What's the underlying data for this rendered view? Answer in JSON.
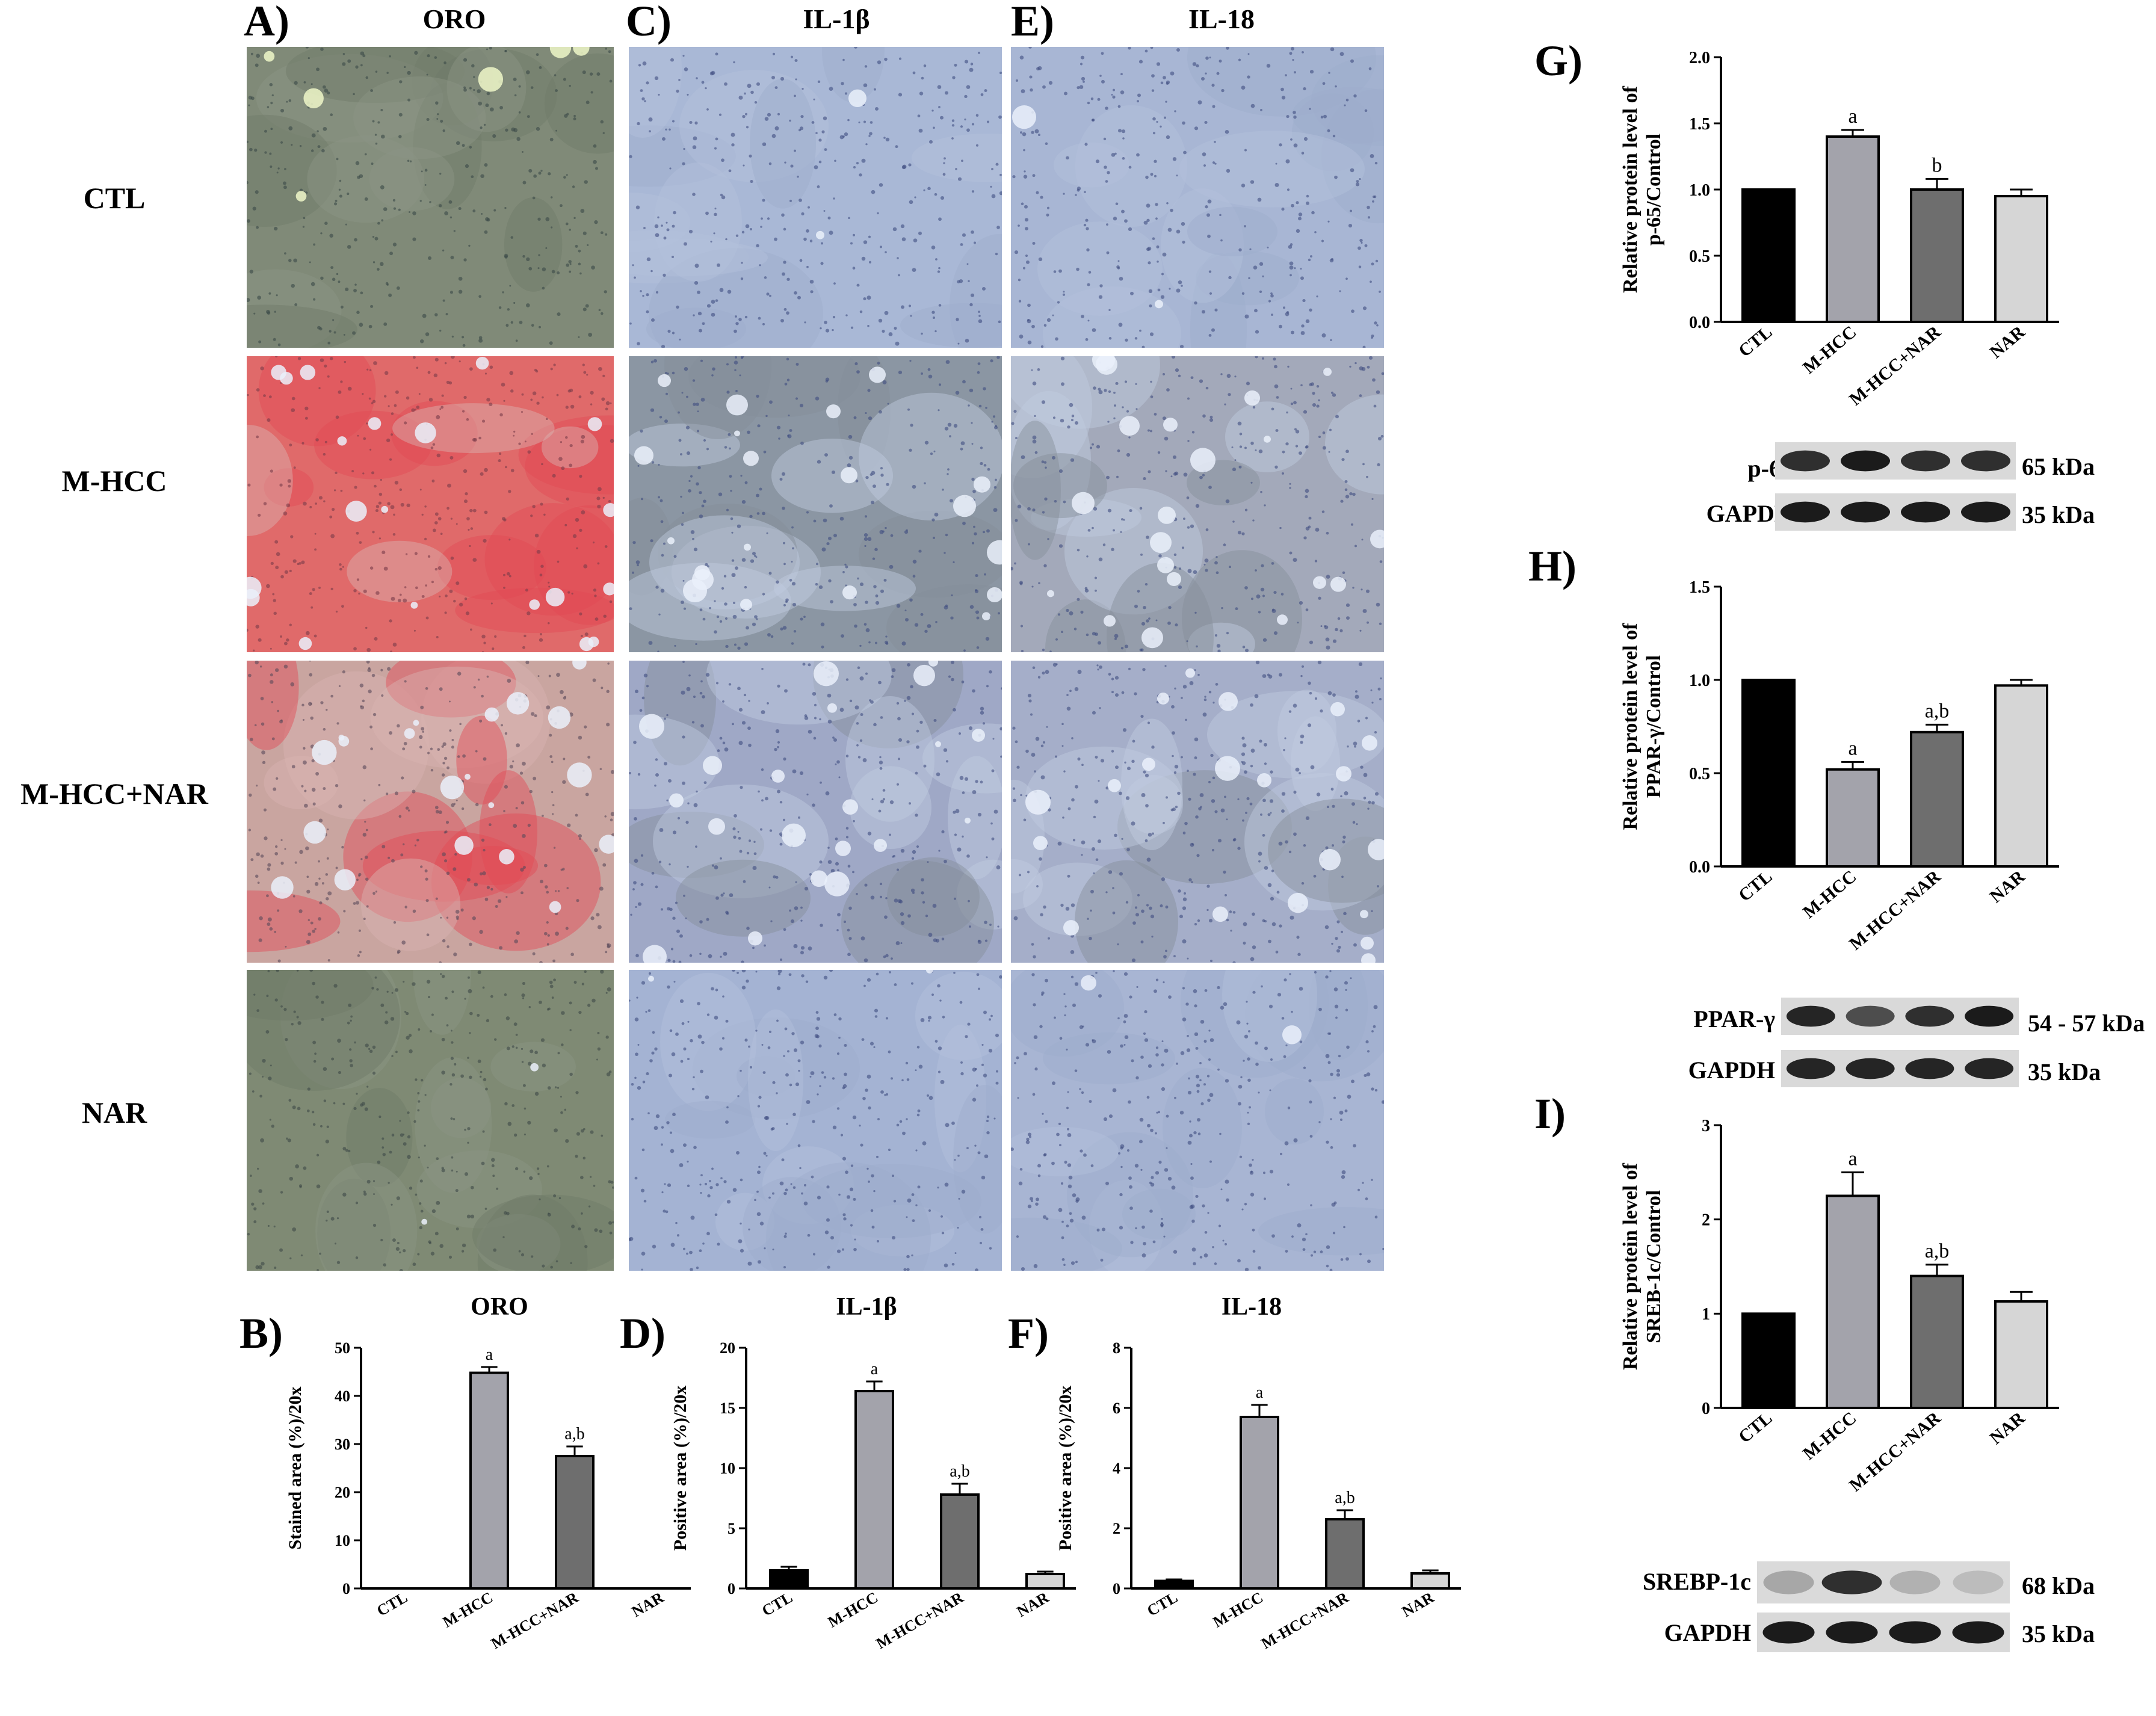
{
  "histology": {
    "columns": [
      {
        "panel": "A)",
        "stain": "ORO"
      },
      {
        "panel": "C)",
        "stain": "IL-1β"
      },
      {
        "panel": "E)",
        "stain": "IL-18"
      }
    ],
    "rows": [
      "CTL",
      "M-HCC",
      "M-HCC+NAR",
      "NAR"
    ]
  },
  "blots": {
    "G": {
      "bands": [
        {
          "label": "p-65",
          "kda": "65 kDa"
        },
        {
          "label": "GAPDH",
          "kda": "35 kDa"
        }
      ]
    },
    "H": {
      "bands": [
        {
          "label": "PPAR-γ",
          "kda": "54 - 57 kDa"
        },
        {
          "label": "GAPDH",
          "kda": "35 kDa"
        }
      ]
    },
    "I": {
      "bands": [
        {
          "label": "SREBP-1c",
          "kda": "68 kDa"
        },
        {
          "label": "GAPDH",
          "kda": "35 kDa"
        }
      ]
    }
  },
  "chart_data": [
    {
      "panel": "B)",
      "type": "bar",
      "title": "ORO",
      "categories": [
        "CTL",
        "M-HCC",
        "M-HCC+NAR",
        "NAR"
      ],
      "values": [
        0,
        44.8,
        27.5,
        0
      ],
      "errors": [
        0,
        1.2,
        2.0,
        0
      ],
      "annotations": [
        "",
        "a",
        "a,b",
        ""
      ],
      "ylabel": "Stained area (%)/20x",
      "ylim": [
        0,
        50
      ],
      "yticks": [
        "0",
        "10",
        "20",
        "30",
        "40",
        "50"
      ],
      "colors": [
        "#000000",
        "#a3a3ab",
        "#6e6e6e",
        "#d6d6d6"
      ]
    },
    {
      "panel": "D)",
      "type": "bar",
      "title": "IL-1β",
      "categories": [
        "CTL",
        "M-HCC",
        "M-HCC+NAR",
        "NAR"
      ],
      "values": [
        1.5,
        16.4,
        7.8,
        1.2
      ],
      "errors": [
        0.3,
        0.8,
        0.9,
        0.2
      ],
      "annotations": [
        "",
        "a",
        "a,b",
        ""
      ],
      "ylabel": "Positive area (%)/20x",
      "ylim": [
        0,
        20
      ],
      "yticks": [
        "0",
        "5",
        "10",
        "15",
        "20"
      ],
      "colors": [
        "#000000",
        "#a3a3ab",
        "#6e6e6e",
        "#d6d6d6"
      ]
    },
    {
      "panel": "F)",
      "type": "bar",
      "title": "IL-18",
      "categories": [
        "CTL",
        "M-HCC",
        "M-HCC+NAR",
        "NAR"
      ],
      "values": [
        0.25,
        5.7,
        2.3,
        0.5
      ],
      "errors": [
        0.05,
        0.4,
        0.3,
        0.1
      ],
      "annotations": [
        "",
        "a",
        "a,b",
        ""
      ],
      "ylabel": "Positive area (%)/20x",
      "ylim": [
        0,
        8
      ],
      "yticks": [
        "0",
        "2",
        "4",
        "6",
        "8"
      ],
      "colors": [
        "#000000",
        "#a3a3ab",
        "#6e6e6e",
        "#d6d6d6"
      ]
    },
    {
      "panel": "G)",
      "type": "bar",
      "title": "",
      "categories": [
        "CTL",
        "M-HCC",
        "M-HCC+NAR",
        "NAR"
      ],
      "values": [
        1.0,
        1.4,
        1.0,
        0.95
      ],
      "errors": [
        0,
        0.05,
        0.08,
        0.05
      ],
      "annotations": [
        "",
        "a",
        "b",
        ""
      ],
      "ylabel": "Relative protein level of\np-65/Control",
      "ylim": [
        0,
        2.0
      ],
      "yticks": [
        "0.0",
        "0.5",
        "1.0",
        "1.5",
        "2.0"
      ],
      "colors": [
        "#000000",
        "#a3a3ab",
        "#6e6e6e",
        "#d6d6d6"
      ]
    },
    {
      "panel": "H)",
      "type": "bar",
      "title": "",
      "categories": [
        "CTL",
        "M-HCC",
        "M-HCC+NAR",
        "NAR"
      ],
      "values": [
        1.0,
        0.52,
        0.72,
        0.97
      ],
      "errors": [
        0,
        0.04,
        0.04,
        0.03
      ],
      "annotations": [
        "",
        "a",
        "a,b",
        ""
      ],
      "ylabel": "Relative protein level of\nPPAR-γ/Control",
      "ylim": [
        0,
        1.5
      ],
      "yticks": [
        "0.0",
        "0.5",
        "1.0",
        "1.5"
      ],
      "colors": [
        "#000000",
        "#a3a3ab",
        "#6e6e6e",
        "#d6d6d6"
      ]
    },
    {
      "panel": "I)",
      "type": "bar",
      "title": "",
      "categories": [
        "CTL",
        "M-HCC",
        "M-HCC+NAR",
        "NAR"
      ],
      "values": [
        1.0,
        2.25,
        1.4,
        1.13
      ],
      "errors": [
        0,
        0.25,
        0.12,
        0.1
      ],
      "annotations": [
        "",
        "a",
        "a,b",
        ""
      ],
      "ylabel": "Relative protein level of\nSREB-1c/Control",
      "ylim": [
        0,
        3
      ],
      "yticks": [
        "0",
        "1",
        "2",
        "3"
      ],
      "colors": [
        "#000000",
        "#a3a3ab",
        "#6e6e6e",
        "#d6d6d6"
      ]
    }
  ]
}
